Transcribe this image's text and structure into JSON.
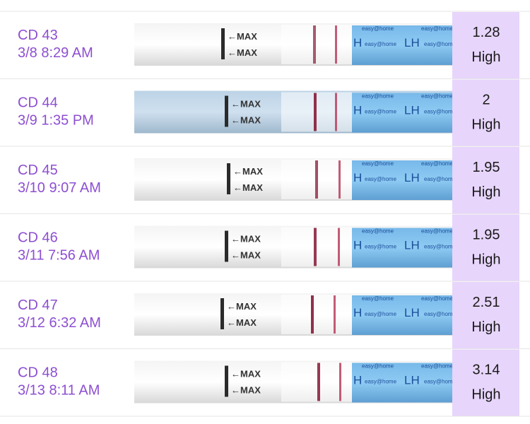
{
  "strip_labels": {
    "max": "←MAX",
    "brand": "easy@home",
    "lh": "LH",
    "h": "H"
  },
  "rows": [
    {
      "day": "CD 43",
      "datetime": "3/8 8:29 AM",
      "value": "1.28",
      "level": "High"
    },
    {
      "day": "CD 44",
      "datetime": "3/9 1:35 PM",
      "value": "2",
      "level": "High"
    },
    {
      "day": "CD 45",
      "datetime": "3/10 9:07 AM",
      "value": "1.95",
      "level": "High"
    },
    {
      "day": "CD 46",
      "datetime": "3/11 7:56 AM",
      "value": "1.95",
      "level": "High"
    },
    {
      "day": "CD 47",
      "datetime": "3/12 6:32 AM",
      "value": "2.51",
      "level": "High"
    },
    {
      "day": "CD 48",
      "datetime": "3/13 8:11 AM",
      "value": "3.14",
      "level": "High"
    }
  ]
}
